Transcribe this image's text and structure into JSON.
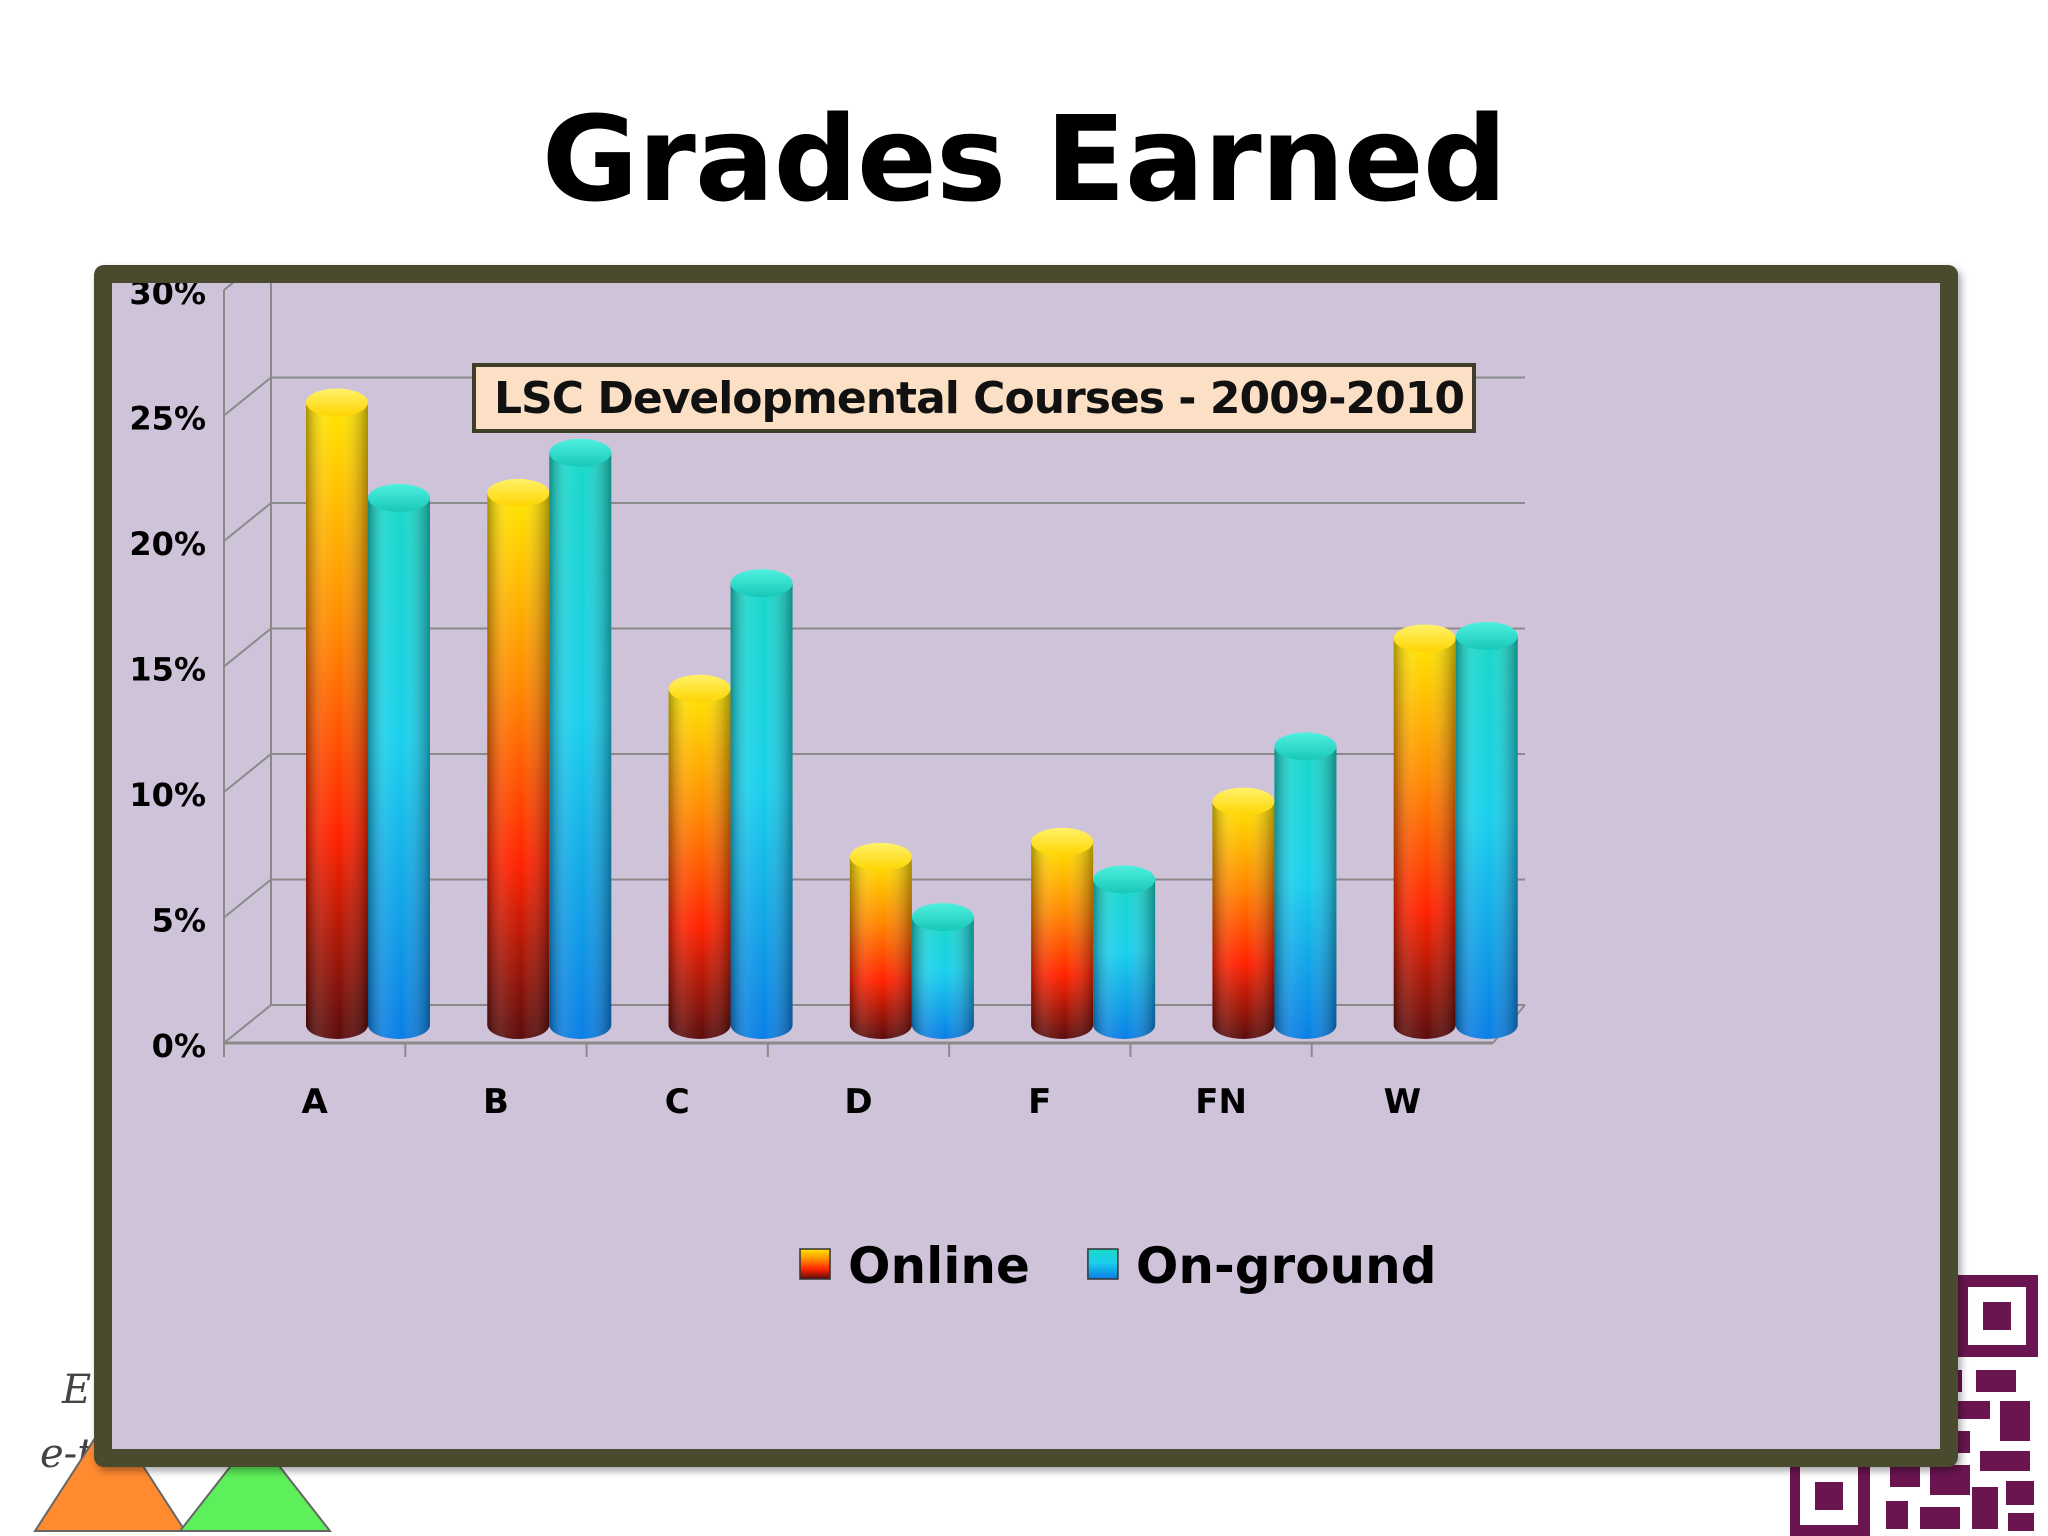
{
  "slide": {
    "title": "Grades Earned"
  },
  "chart_data": {
    "type": "bar",
    "title": "LSC Developmental Courses - 2009-2010",
    "xlabel": "",
    "ylabel": "",
    "categories": [
      "A",
      "B",
      "C",
      "D",
      "F",
      "FN",
      "W"
    ],
    "series": [
      {
        "name": "Online",
        "values": [
          24.8,
          21.2,
          13.4,
          6.7,
          7.3,
          8.9,
          15.4
        ]
      },
      {
        "name": "On-ground",
        "values": [
          21.0,
          22.8,
          17.6,
          4.3,
          5.8,
          11.1,
          15.5
        ]
      }
    ],
    "ylim": [
      0,
      30
    ],
    "yticks": [
      "0%",
      "5%",
      "10%",
      "15%",
      "20%",
      "25%",
      "30%"
    ],
    "grid": true,
    "legend_position": "bottom",
    "colors": {
      "online_top": "#ffe600",
      "online_mid": "#ff8a00",
      "online_low": "#ff2200",
      "online_base": "#5a0c0c",
      "onground_top": "#1ad8c8",
      "onground_mid": "#1ad0ec",
      "onground_low": "#0a7ee4",
      "plot_background": "#cfc3da",
      "frame": "#4a4a2e",
      "title_box": "#fbe0c6"
    }
  }
}
